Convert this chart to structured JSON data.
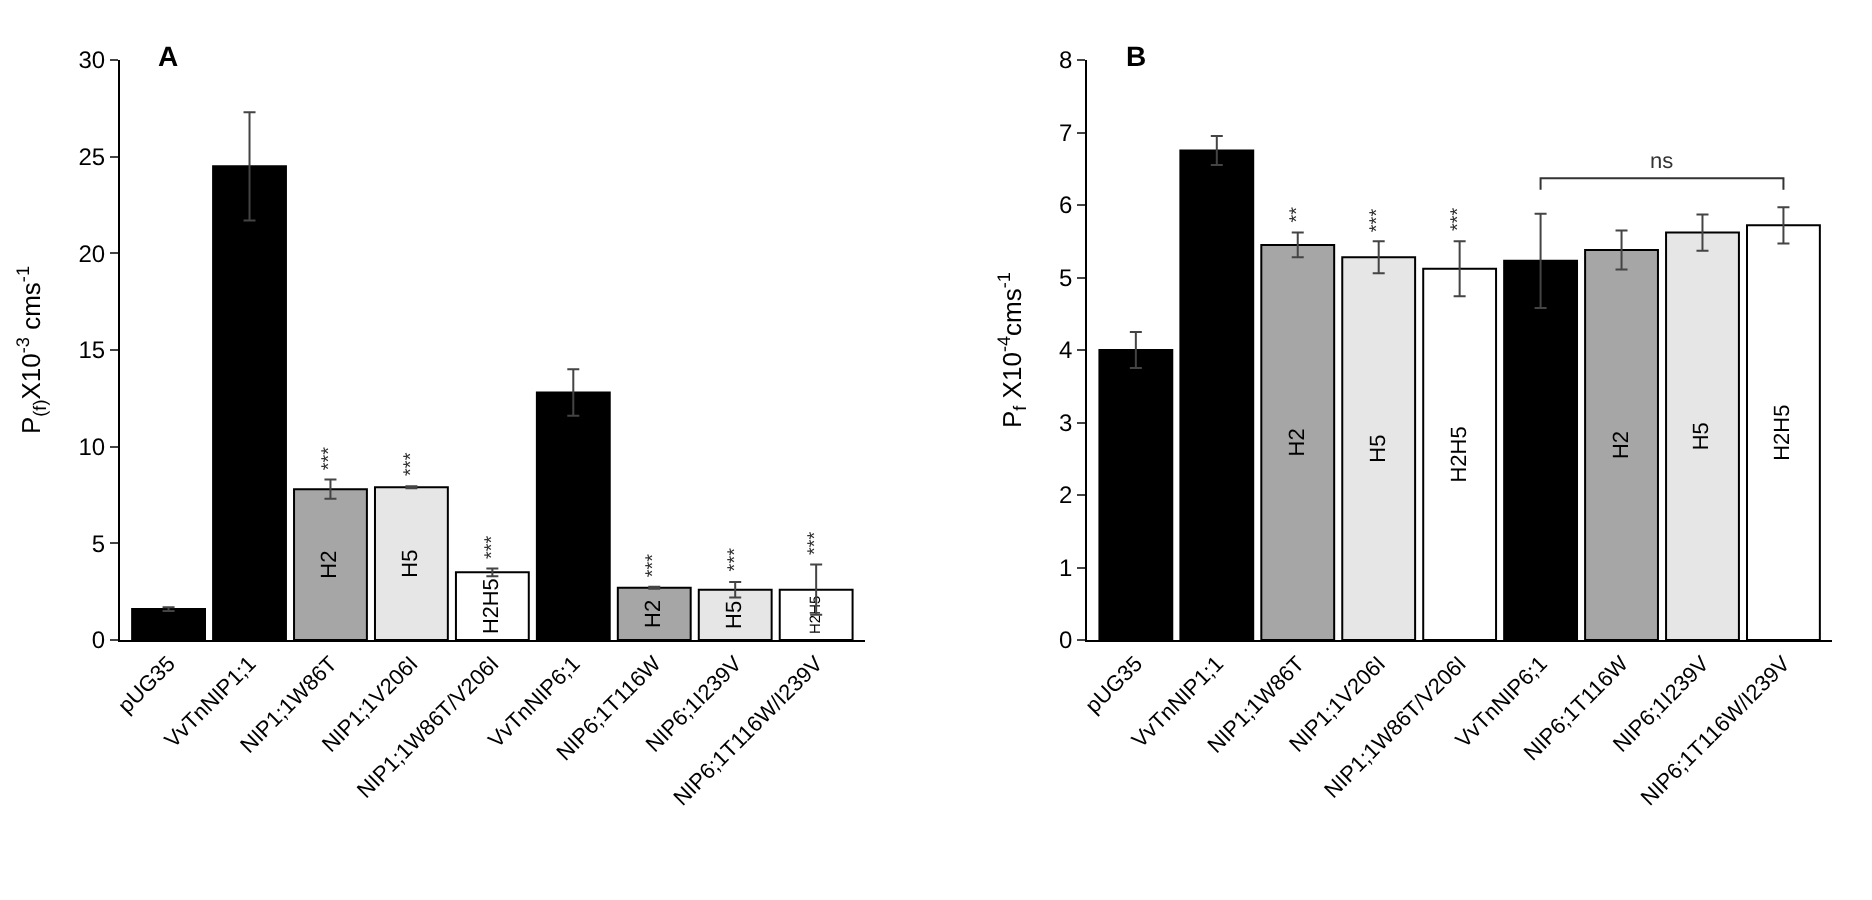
{
  "chart_data": [
    {
      "type": "bar",
      "title": "A",
      "ylabel": "P$_{(f)}$X10$^{-3}$ cms$^{-1}$",
      "categories": [
        "pUG35",
        "VvTnNIP1;1",
        "NIP1;1W86T",
        "NIP1;1V206I",
        "NIP1;1W86T/V206I",
        "VvTnNIP6;1",
        "NIP6;1T116W",
        "NIP6;1I239V",
        "NIP6;1T116W/I239V"
      ],
      "values": [
        1.6,
        24.5,
        7.8,
        7.9,
        3.5,
        12.8,
        2.7,
        2.6,
        2.6
      ],
      "errors": [
        0.1,
        2.8,
        0.5,
        0.05,
        0.2,
        1.2,
        0.05,
        0.4,
        1.3
      ],
      "value_labels": [
        null,
        null,
        "H2",
        "H5",
        "H2H5",
        null,
        "H2",
        "H5",
        "H2H5"
      ],
      "colors": [
        "#000000",
        "#000000",
        "#a6a6a6",
        "#e6e6e6",
        "#ffffff",
        "#000000",
        "#a6a6a6",
        "#e6e6e6",
        "#ffffff"
      ],
      "ylim": [
        0,
        30
      ],
      "yticks": [
        0,
        5,
        10,
        15,
        20,
        25,
        30
      ],
      "legend": false,
      "annotations": [
        "***",
        "***",
        "***",
        "***",
        "***",
        "***"
      ]
    },
    {
      "type": "bar",
      "title": "B",
      "ylabel": "P$_{f}$ X10$^{-4}$cms$^{-1}$",
      "categories": [
        "pUG35",
        "VvTnNIP1;1",
        "NIP1;1W86T",
        "NIP1;1V206I",
        "NIP1;1W86T/V206I",
        "VvTnNIP6;1",
        "NIP6;1T116W",
        "NIP6;1I239V",
        "NIP6;1T116W/I239V"
      ],
      "values": [
        4.0,
        6.75,
        5.45,
        5.28,
        5.12,
        5.23,
        5.38,
        5.62,
        5.72
      ],
      "errors": [
        0.25,
        0.2,
        0.17,
        0.22,
        0.38,
        0.65,
        0.27,
        0.25,
        0.25
      ],
      "value_labels": [
        null,
        null,
        "H2",
        "H5",
        "H2H5",
        null,
        "H2",
        "H5",
        "H2H5"
      ],
      "colors": [
        "#000000",
        "#000000",
        "#a6a6a6",
        "#e6e6e6",
        "#ffffff",
        "#000000",
        "#a6a6a6",
        "#e6e6e6",
        "#ffffff"
      ],
      "ylim": [
        0,
        8
      ],
      "yticks": [
        0,
        1,
        2,
        3,
        4,
        5,
        6,
        7,
        8
      ],
      "legend": false,
      "annotations": [
        "**",
        "***",
        "***",
        "ns"
      ]
    }
  ]
}
